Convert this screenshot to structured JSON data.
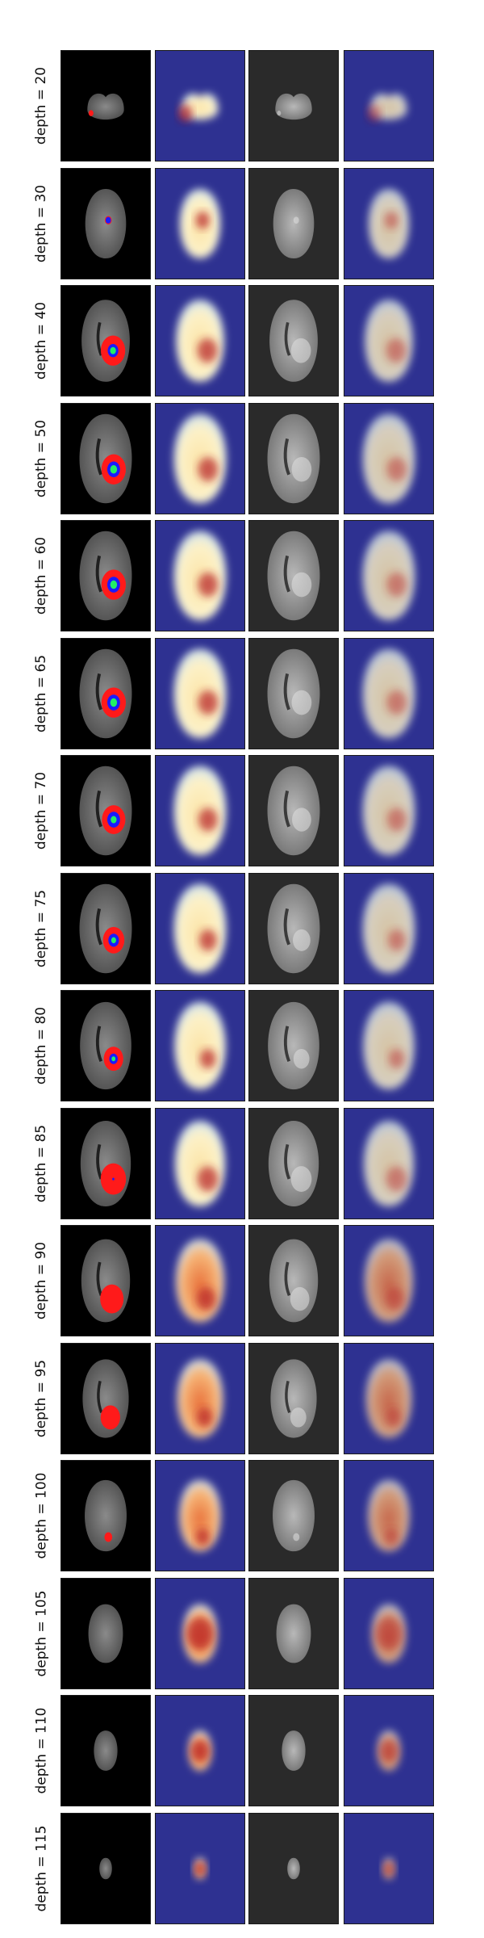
{
  "figure": {
    "rows": [
      {
        "label": "depth = 20",
        "brain": {
          "scale": 0.55,
          "shape": "cerebellum"
        },
        "tumor": {
          "edema": 0.05,
          "enhancing": 0.0,
          "core": 0.0,
          "dx": 0.1,
          "dy": 0.65
        },
        "heat": {
          "intensity": 0.75
        }
      },
      {
        "label": "depth = 30",
        "brain": {
          "scale": 0.78,
          "shape": "lower"
        },
        "tumor": {
          "edema": 0.07,
          "enhancing": 0.05,
          "core": 0.0,
          "dx": 0.55,
          "dy": 0.45
        },
        "heat": {
          "intensity": 0.55
        }
      },
      {
        "label": "depth = 40",
        "brain": {
          "scale": 0.92,
          "shape": "mid"
        },
        "tumor": {
          "edema": 0.25,
          "enhancing": 0.1,
          "core": 0.06,
          "dx": 0.62,
          "dy": 0.62
        },
        "heat": {
          "intensity": 0.55
        }
      },
      {
        "label": "depth = 50",
        "brain": {
          "scale": 1.0,
          "shape": "mid"
        },
        "tumor": {
          "edema": 0.25,
          "enhancing": 0.12,
          "core": 0.07,
          "dx": 0.62,
          "dy": 0.62
        },
        "heat": {
          "intensity": 0.5
        }
      },
      {
        "label": "depth = 60",
        "brain": {
          "scale": 1.0,
          "shape": "mid"
        },
        "tumor": {
          "edema": 0.25,
          "enhancing": 0.12,
          "core": 0.07,
          "dx": 0.62,
          "dy": 0.6
        },
        "heat": {
          "intensity": 0.5
        }
      },
      {
        "label": "depth = 65",
        "brain": {
          "scale": 1.0,
          "shape": "mid"
        },
        "tumor": {
          "edema": 0.25,
          "enhancing": 0.12,
          "core": 0.07,
          "dx": 0.62,
          "dy": 0.6
        },
        "heat": {
          "intensity": 0.5
        }
      },
      {
        "label": "depth = 70",
        "brain": {
          "scale": 1.0,
          "shape": "upper"
        },
        "tumor": {
          "edema": 0.24,
          "enhancing": 0.12,
          "core": 0.06,
          "dx": 0.62,
          "dy": 0.6
        },
        "heat": {
          "intensity": 0.45
        }
      },
      {
        "label": "depth = 75",
        "brain": {
          "scale": 1.0,
          "shape": "upper"
        },
        "tumor": {
          "edema": 0.22,
          "enhancing": 0.1,
          "core": 0.05,
          "dx": 0.62,
          "dy": 0.63
        },
        "heat": {
          "intensity": 0.5
        }
      },
      {
        "label": "depth = 80",
        "brain": {
          "scale": 0.98,
          "shape": "upper"
        },
        "tumor": {
          "edema": 0.2,
          "enhancing": 0.08,
          "core": 0.04,
          "dx": 0.62,
          "dy": 0.65
        },
        "heat": {
          "intensity": 0.55
        }
      },
      {
        "label": "depth = 85",
        "brain": {
          "scale": 0.96,
          "shape": "upper"
        },
        "tumor": {
          "edema": 0.26,
          "enhancing": 0.02,
          "core": 0.0,
          "dx": 0.62,
          "dy": 0.68
        },
        "heat": {
          "intensity": 0.75
        }
      },
      {
        "label": "depth = 90",
        "brain": {
          "scale": 0.93,
          "shape": "top"
        },
        "tumor": {
          "edema": 0.24,
          "enhancing": 0.0,
          "core": 0.0,
          "dx": 0.6,
          "dy": 0.72
        },
        "heat": {
          "intensity": 0.85
        }
      },
      {
        "label": "depth = 95",
        "brain": {
          "scale": 0.88,
          "shape": "top"
        },
        "tumor": {
          "edema": 0.2,
          "enhancing": 0.0,
          "core": 0.0,
          "dx": 0.58,
          "dy": 0.74
        },
        "heat": {
          "intensity": 0.9
        }
      },
      {
        "label": "depth = 100",
        "brain": {
          "scale": 0.8,
          "shape": "top"
        },
        "tumor": {
          "edema": 0.08,
          "enhancing": 0.0,
          "core": 0.0,
          "dx": 0.55,
          "dy": 0.8
        },
        "heat": {
          "intensity": 0.95
        }
      },
      {
        "label": "depth = 105",
        "brain": {
          "scale": 0.66,
          "shape": "top"
        },
        "tumor": {
          "edema": 0.0,
          "enhancing": 0.0,
          "core": 0.0,
          "dx": 0.5,
          "dy": 0.5
        },
        "heat": {
          "intensity": 1.0
        }
      },
      {
        "label": "depth = 110",
        "brain": {
          "scale": 0.45,
          "shape": "top"
        },
        "tumor": {
          "edema": 0.0,
          "enhancing": 0.0,
          "core": 0.0,
          "dx": 0.5,
          "dy": 0.5
        },
        "heat": {
          "intensity": 1.0
        }
      },
      {
        "label": "depth = 115",
        "brain": {
          "scale": 0.24,
          "shape": "tip"
        },
        "tumor": {
          "edema": 0.0,
          "enhancing": 0.0,
          "core": 0.0,
          "dx": 0.5,
          "dy": 0.5
        },
        "heat": {
          "intensity": 1.0
        }
      }
    ],
    "columns": [
      "segmentation-overlay",
      "attention-heatmap",
      "mri-slice",
      "heatmap-overlay"
    ],
    "colors": {
      "segmentation_background": "#000000",
      "edema": "#ff1a1a",
      "enhancing": "#1a1aff",
      "necrotic_core": "#22ee66",
      "heatmap_background": "#2e3191",
      "mri_background": "#2a2a2a",
      "border": "#1a1a1a"
    }
  }
}
